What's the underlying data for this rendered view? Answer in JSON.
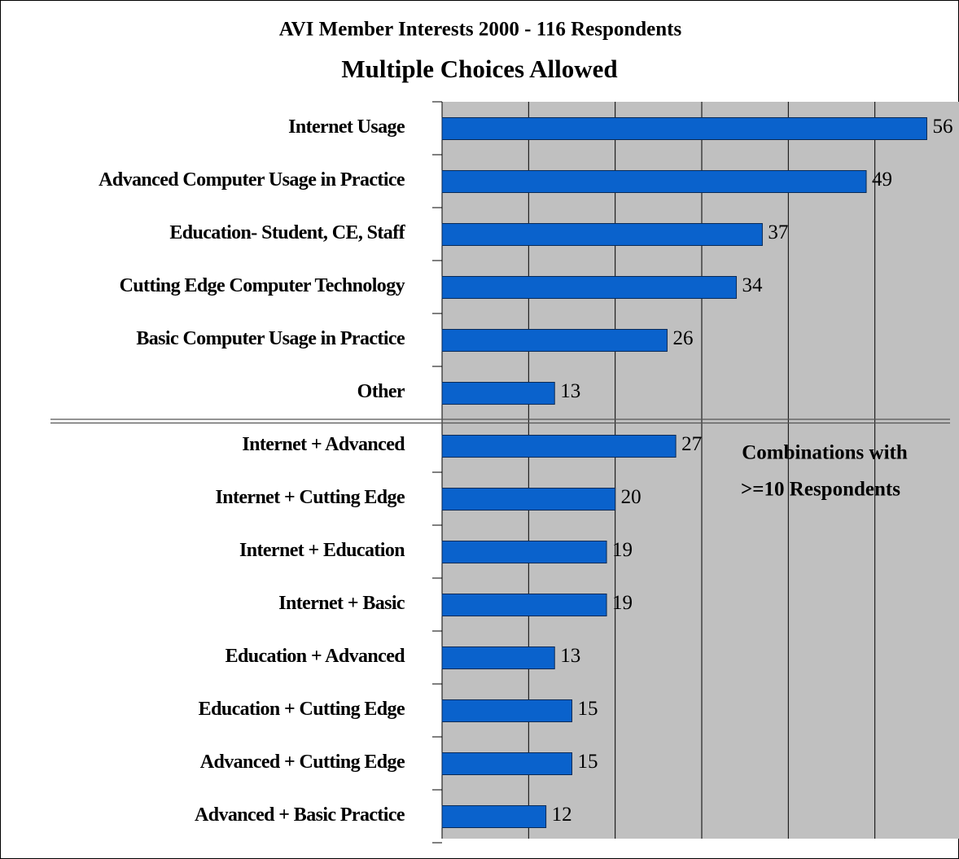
{
  "chart_data": {
    "type": "bar",
    "orientation": "horizontal",
    "title": "AVI Member Interests 2000 - 116 Respondents",
    "subtitle": "Multiple Choices Allowed",
    "categories": [
      "Internet Usage",
      "Advanced Computer Usage in Practice",
      "Education- Student, CE, Staff",
      "Cutting Edge Computer Technology",
      "Basic Computer Usage in Practice",
      "Other",
      "Internet + Advanced",
      "Internet + Cutting Edge",
      "Internet + Education",
      "Internet + Basic",
      "Education + Advanced",
      "Education + Cutting Edge",
      "Advanced + Cutting Edge",
      "Advanced + Basic Practice"
    ],
    "values": [
      56,
      49,
      37,
      34,
      26,
      13,
      27,
      20,
      19,
      19,
      13,
      15,
      15,
      12
    ],
    "color": "#0a62cc",
    "xlim": [
      0,
      60
    ],
    "xticks": [
      0,
      10,
      20,
      30,
      40,
      50,
      60
    ],
    "grid": true,
    "annotations": [
      "Combinations with",
      ">=10 Respondents"
    ]
  }
}
